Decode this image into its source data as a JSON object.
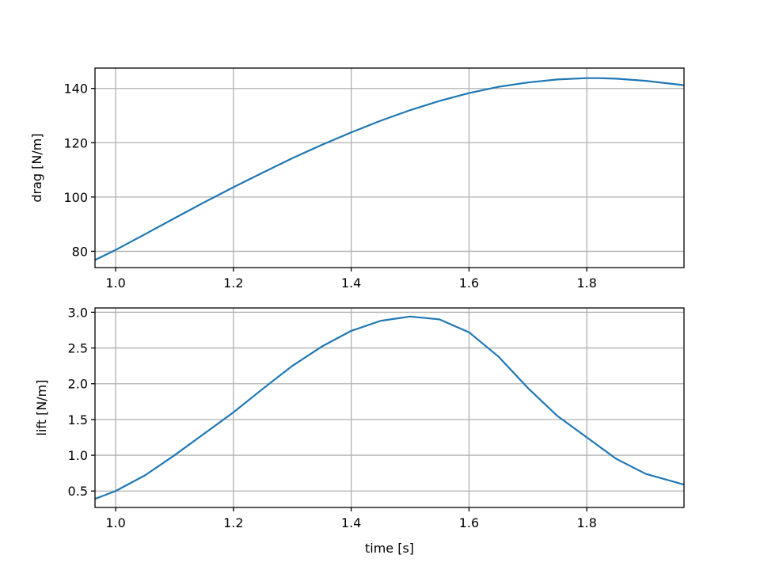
{
  "colors": {
    "series": "#1f77b4",
    "grid": "#b0b0b0",
    "axes": "#000000",
    "background": "#ffffff"
  },
  "chart_data": [
    {
      "type": "line",
      "title": "",
      "xlabel": "",
      "ylabel": "drag [N/m]",
      "xlim": [
        0.965,
        1.965
      ],
      "ylim": [
        74,
        147.5
      ],
      "xticks": [
        1.0,
        1.2,
        1.4,
        1.6,
        1.8
      ],
      "xtick_labels": [
        "1.0",
        "1.2",
        "1.4",
        "1.6",
        "1.8"
      ],
      "yticks": [
        80,
        100,
        120,
        140
      ],
      "ytick_labels": [
        "80",
        "100",
        "120",
        "140"
      ],
      "grid": true,
      "legend": "none",
      "series": [
        {
          "x": [
            0.965,
            1.0,
            1.05,
            1.1,
            1.15,
            1.2,
            1.25,
            1.3,
            1.35,
            1.4,
            1.45,
            1.5,
            1.55,
            1.6,
            1.65,
            1.7,
            1.75,
            1.8,
            1.82,
            1.85,
            1.9,
            1.965
          ],
          "y": [
            76.8,
            80.5,
            86.3,
            92.2,
            98.0,
            103.6,
            109.0,
            114.3,
            119.2,
            123.8,
            128.1,
            132.0,
            135.4,
            138.3,
            140.6,
            142.2,
            143.3,
            143.8,
            143.8,
            143.6,
            142.8,
            141.2
          ]
        }
      ]
    },
    {
      "type": "line",
      "title": "",
      "xlabel": "time [s]",
      "ylabel": "lift [N/m]",
      "xlim": [
        0.965,
        1.965
      ],
      "ylim": [
        0.27,
        3.06
      ],
      "xticks": [
        1.0,
        1.2,
        1.4,
        1.6,
        1.8
      ],
      "xtick_labels": [
        "1.0",
        "1.2",
        "1.4",
        "1.6",
        "1.8"
      ],
      "yticks": [
        0.5,
        1.0,
        1.5,
        2.0,
        2.5,
        3.0
      ],
      "ytick_labels": [
        "0.5",
        "1.0",
        "1.5",
        "2.0",
        "2.5",
        "3.0"
      ],
      "grid": true,
      "legend": "none",
      "series": [
        {
          "x": [
            0.965,
            1.0,
            1.05,
            1.1,
            1.15,
            1.2,
            1.25,
            1.3,
            1.35,
            1.4,
            1.45,
            1.5,
            1.55,
            1.6,
            1.65,
            1.7,
            1.75,
            1.8,
            1.85,
            1.9,
            1.965
          ],
          "y": [
            0.39,
            0.5,
            0.72,
            1.0,
            1.3,
            1.6,
            1.93,
            2.25,
            2.52,
            2.74,
            2.88,
            2.94,
            2.9,
            2.72,
            2.38,
            1.94,
            1.55,
            1.25,
            0.95,
            0.74,
            0.59
          ]
        }
      ]
    }
  ]
}
